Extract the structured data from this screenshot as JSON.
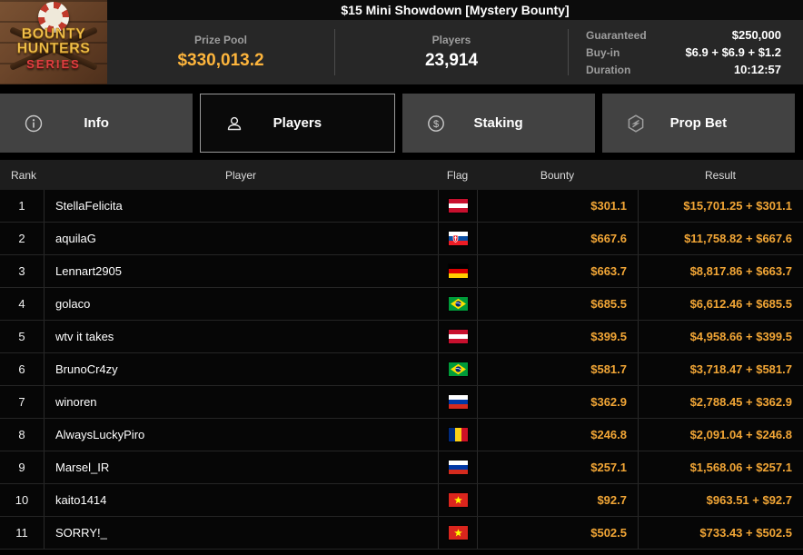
{
  "logo": {
    "line1": "BOUNTY",
    "line2": "HUNTERS",
    "line3": "SERIES"
  },
  "title": "$15 Mini Showdown [Mystery Bounty]",
  "stats": {
    "prize_pool_label": "Prize Pool",
    "prize_pool_value": "$330,013.2",
    "players_label": "Players",
    "players_value": "23,914",
    "details": [
      {
        "label": "Guaranteed",
        "value": "$250,000"
      },
      {
        "label": "Buy-in",
        "value": "$6.9 + $6.9 + $1.2"
      },
      {
        "label": "Duration",
        "value": "10:12:57"
      }
    ]
  },
  "tabs": [
    {
      "label": "Info",
      "icon": "info-icon",
      "active": false
    },
    {
      "label": "Players",
      "icon": "players-icon",
      "active": true
    },
    {
      "label": "Staking",
      "icon": "staking-icon",
      "active": false
    },
    {
      "label": "Prop Bet",
      "icon": "prop-bet-icon",
      "active": false
    }
  ],
  "table": {
    "headers": {
      "rank": "Rank",
      "player": "Player",
      "flag": "Flag",
      "bounty": "Bounty",
      "result": "Result"
    },
    "rows": [
      {
        "rank": "1",
        "player": "StellaFelicita",
        "flag": "austria",
        "bounty": "$301.1",
        "result": "$15,701.25 + $301.1"
      },
      {
        "rank": "2",
        "player": "aquilaG",
        "flag": "slovakia",
        "bounty": "$667.6",
        "result": "$11,758.82 + $667.6"
      },
      {
        "rank": "3",
        "player": "Lennart2905",
        "flag": "germany",
        "bounty": "$663.7",
        "result": "$8,817.86 + $663.7"
      },
      {
        "rank": "4",
        "player": "golaco",
        "flag": "brazil",
        "bounty": "$685.5",
        "result": "$6,612.46 + $685.5"
      },
      {
        "rank": "5",
        "player": "wtv it takes",
        "flag": "austria",
        "bounty": "$399.5",
        "result": "$4,958.66 + $399.5"
      },
      {
        "rank": "6",
        "player": "BrunoCr4zy",
        "flag": "brazil",
        "bounty": "$581.7",
        "result": "$3,718.47 + $581.7"
      },
      {
        "rank": "7",
        "player": "winoren",
        "flag": "russia",
        "bounty": "$362.9",
        "result": "$2,788.45 + $362.9"
      },
      {
        "rank": "8",
        "player": "AlwaysLuckyPiro",
        "flag": "romania",
        "bounty": "$246.8",
        "result": "$2,091.04 + $246.8"
      },
      {
        "rank": "9",
        "player": "Marsel_IR",
        "flag": "russia",
        "bounty": "$257.1",
        "result": "$1,568.06 + $257.1"
      },
      {
        "rank": "10",
        "player": "kaito1414",
        "flag": "vietnam",
        "bounty": "$92.7",
        "result": "$963.51 + $92.7"
      },
      {
        "rank": "11",
        "player": "SORRY!_",
        "flag": "vietnam",
        "bounty": "$502.5",
        "result": "$733.43 + $502.5"
      }
    ]
  },
  "colors": {
    "gold": "#f2a636",
    "prize_gold": "#fcb43c",
    "tab_inactive_bg": "#424242",
    "row_bg": "#060606",
    "header_bg": "#1d1d1d"
  }
}
